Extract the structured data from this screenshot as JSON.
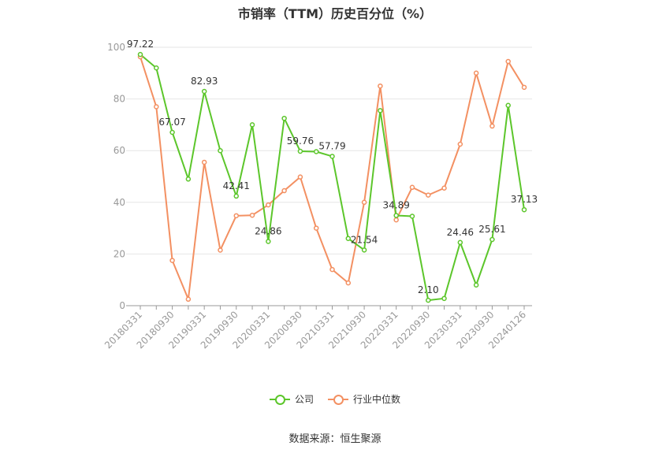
{
  "title": "市销率（TTM）历史百分位（%）",
  "source": "数据来源：恒生聚源",
  "colors": {
    "company": "#5cc62b",
    "industry": "#f39062",
    "axis": "#999999",
    "grid": "#e6e6e6",
    "text": "#333333"
  },
  "chart_data": {
    "type": "line",
    "title": "市销率（TTM）历史百分位（%）",
    "ylim": [
      0,
      100
    ],
    "yticks": [
      0,
      20,
      40,
      60,
      80,
      100
    ],
    "x_tick_labels": [
      "20180331",
      "20180930",
      "20190331",
      "20190930",
      "20200331",
      "20200930",
      "20210331",
      "20210930",
      "20220331",
      "20220930",
      "20230331",
      "20230930",
      "20240126"
    ],
    "x": [
      "20180331",
      "20180630",
      "20180930",
      "20181231",
      "20190331",
      "20190630",
      "20190930",
      "20191231",
      "20200331",
      "20200630",
      "20200930",
      "20201231",
      "20210331",
      "20210630",
      "20210930",
      "20211231",
      "20220331",
      "20220630",
      "20220930",
      "20221231",
      "20230331",
      "20230630",
      "20230930",
      "20231231",
      "20240126"
    ],
    "legend_position": "bottom",
    "grid": true,
    "series": [
      {
        "name": "公司",
        "color": "#5cc62b",
        "values": [
          97.22,
          92.0,
          67.07,
          49.0,
          82.93,
          60.0,
          42.41,
          70.0,
          24.86,
          72.5,
          59.76,
          59.6,
          57.79,
          26.0,
          21.54,
          75.5,
          34.89,
          34.6,
          2.1,
          2.8,
          24.46,
          8.0,
          25.61,
          77.5,
          37.13
        ],
        "labels": [
          "97.22",
          null,
          "67.07",
          null,
          "82.93",
          null,
          "42.41",
          null,
          "24.86",
          null,
          "59.76",
          null,
          "57.79",
          null,
          "21.54",
          null,
          "34.89",
          null,
          "2.10",
          null,
          "24.46",
          null,
          "25.61",
          null,
          "37.13"
        ]
      },
      {
        "name": "行业中位数",
        "color": "#f39062",
        "values": [
          96.3,
          77.0,
          17.5,
          2.5,
          55.5,
          21.5,
          34.8,
          35.0,
          39.0,
          44.5,
          49.8,
          30.0,
          14.0,
          8.8,
          40.0,
          85.0,
          33.2,
          45.8,
          42.8,
          45.5,
          62.5,
          90.0,
          69.5,
          94.5,
          84.5
        ],
        "labels": []
      }
    ]
  }
}
